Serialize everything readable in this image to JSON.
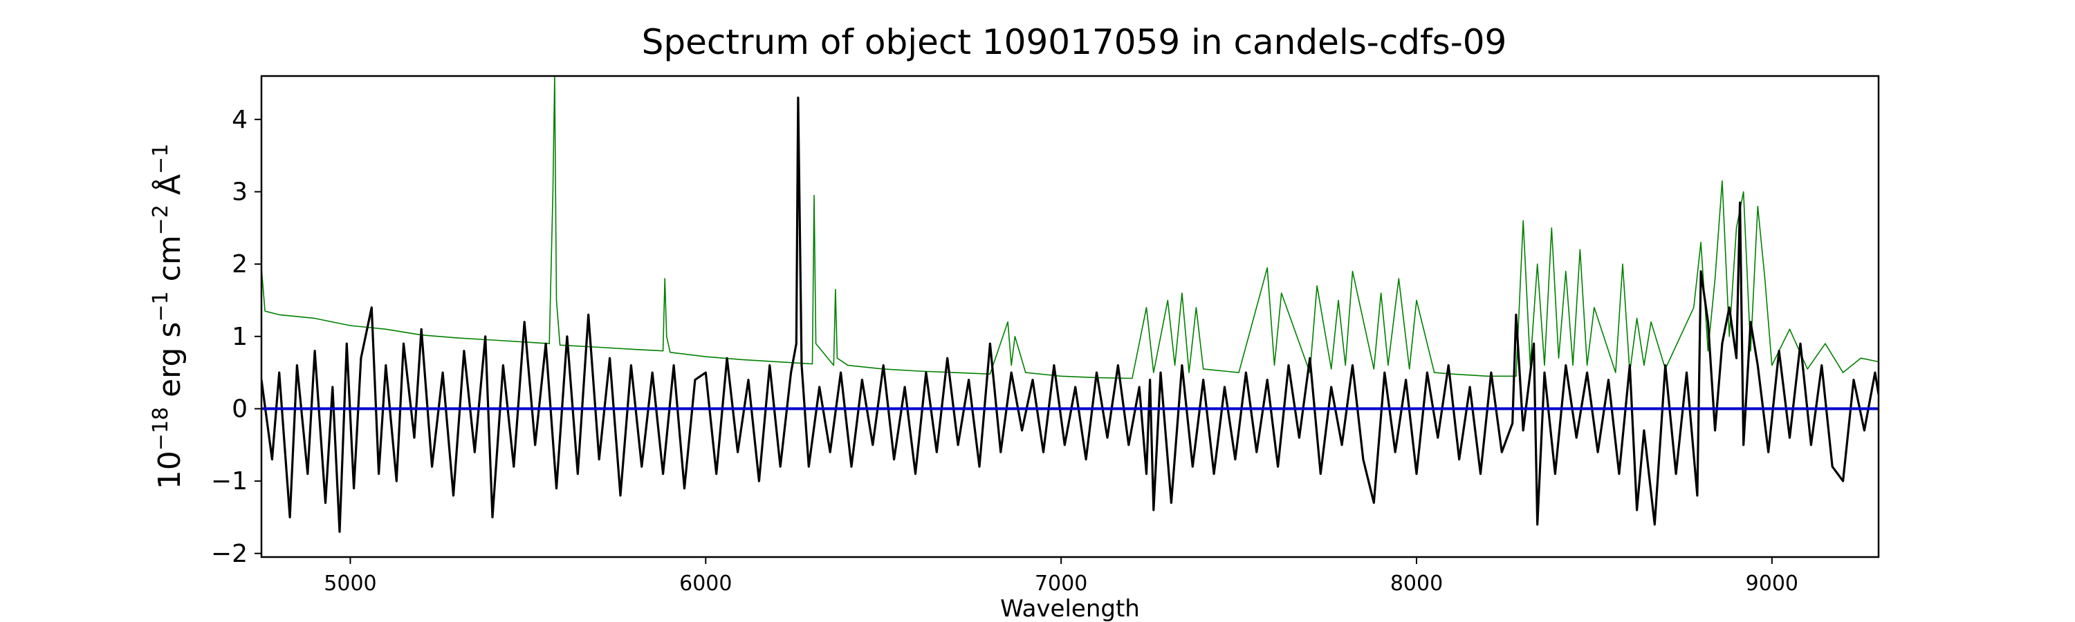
{
  "chart_data": {
    "type": "line",
    "title": "Spectrum of object 109017059 in candels-cdfs-09",
    "xlabel": "Wavelength",
    "ylabel_base": "10",
    "ylabel_exp": "−18",
    "ylabel_rest": " erg s",
    "ylabel_s_exp": "−1",
    "ylabel_cm": " cm",
    "ylabel_cm_exp": "−2",
    "ylabel_angstrom": " Å",
    "ylabel_a_exp": "−1",
    "xlim": [
      4750,
      9300
    ],
    "ylim": [
      -2.05,
      4.6
    ],
    "x_ticks": [
      5000,
      6000,
      7000,
      8000,
      9000
    ],
    "x_tick_labels": [
      "5000",
      "6000",
      "7000",
      "8000",
      "9000"
    ],
    "y_ticks": [
      -2,
      -1,
      0,
      1,
      2,
      3,
      4
    ],
    "y_tick_labels": [
      "−2",
      "−1",
      "0",
      "1",
      "2",
      "3",
      "4"
    ],
    "grid": false,
    "series": [
      {
        "role": "noise",
        "color": "#008000",
        "x": [
          4750,
          4760,
          4800,
          4900,
          5000,
          5100,
          5200,
          5300,
          5400,
          5500,
          5560,
          5570,
          5575,
          5580,
          5590,
          5700,
          5800,
          5880,
          5885,
          5890,
          5900,
          6000,
          6100,
          6200,
          6300,
          6305,
          6310,
          6360,
          6365,
          6370,
          6400,
          6500,
          6600,
          6700,
          6800,
          6850,
          6860,
          6870,
          6900,
          7000,
          7100,
          7200,
          7240,
          7260,
          7300,
          7320,
          7340,
          7360,
          7380,
          7400,
          7500,
          7580,
          7600,
          7620,
          7700,
          7720,
          7760,
          7780,
          7800,
          7820,
          7880,
          7900,
          7920,
          7950,
          7980,
          8000,
          8050,
          8100,
          8200,
          8280,
          8300,
          8320,
          8340,
          8360,
          8380,
          8400,
          8420,
          8440,
          8460,
          8480,
          8500,
          8560,
          8580,
          8600,
          8620,
          8640,
          8660,
          8700,
          8780,
          8800,
          8820,
          8840,
          8860,
          8880,
          8900,
          8920,
          8940,
          8960,
          8980,
          9000,
          9050,
          9100,
          9150,
          9200,
          9250,
          9300
        ],
        "y": [
          1.95,
          1.35,
          1.3,
          1.25,
          1.15,
          1.1,
          1.02,
          0.98,
          0.95,
          0.92,
          0.9,
          3.0,
          4.6,
          1.5,
          0.88,
          0.85,
          0.82,
          0.8,
          1.8,
          1.0,
          0.78,
          0.72,
          0.68,
          0.65,
          0.62,
          2.95,
          0.9,
          0.6,
          1.65,
          0.7,
          0.6,
          0.55,
          0.52,
          0.5,
          0.48,
          1.2,
          0.6,
          1.0,
          0.5,
          0.45,
          0.43,
          0.42,
          1.4,
          0.5,
          1.5,
          0.6,
          1.6,
          0.5,
          1.4,
          0.55,
          0.5,
          1.95,
          0.6,
          1.6,
          0.5,
          1.7,
          0.55,
          1.5,
          0.6,
          1.9,
          0.55,
          1.6,
          0.6,
          1.8,
          0.55,
          1.5,
          0.5,
          0.48,
          0.45,
          0.45,
          2.6,
          0.6,
          2.0,
          0.6,
          2.5,
          0.7,
          1.9,
          0.6,
          2.2,
          0.6,
          1.4,
          0.5,
          2.0,
          0.5,
          1.25,
          0.6,
          1.2,
          0.55,
          1.4,
          2.3,
          0.8,
          1.8,
          3.15,
          1.0,
          2.5,
          3.0,
          0.8,
          2.8,
          1.8,
          0.6,
          1.1,
          0.55,
          0.9,
          0.5,
          0.7,
          0.65
        ]
      },
      {
        "role": "flux",
        "color": "#000000",
        "x": [
          4750,
          4780,
          4800,
          4830,
          4850,
          4880,
          4900,
          4930,
          4950,
          4970,
          4990,
          5010,
          5030,
          5060,
          5080,
          5100,
          5130,
          5150,
          5180,
          5200,
          5230,
          5260,
          5290,
          5320,
          5350,
          5380,
          5400,
          5430,
          5460,
          5490,
          5520,
          5550,
          5580,
          5610,
          5640,
          5670,
          5700,
          5730,
          5760,
          5790,
          5820,
          5850,
          5880,
          5910,
          5940,
          5970,
          6000,
          6030,
          6060,
          6090,
          6120,
          6150,
          6180,
          6210,
          6240,
          6255,
          6260,
          6270,
          6290,
          6320,
          6350,
          6380,
          6410,
          6440,
          6470,
          6500,
          6530,
          6560,
          6590,
          6620,
          6650,
          6680,
          6710,
          6740,
          6770,
          6800,
          6830,
          6860,
          6890,
          6920,
          6950,
          6980,
          7010,
          7040,
          7070,
          7100,
          7130,
          7160,
          7190,
          7220,
          7240,
          7250,
          7260,
          7280,
          7310,
          7340,
          7370,
          7400,
          7430,
          7460,
          7490,
          7520,
          7550,
          7580,
          7610,
          7640,
          7670,
          7700,
          7730,
          7760,
          7790,
          7820,
          7850,
          7880,
          7910,
          7940,
          7970,
          8000,
          8030,
          8060,
          8090,
          8120,
          8150,
          8180,
          8210,
          8240,
          8270,
          8280,
          8300,
          8330,
          8340,
          8360,
          8390,
          8420,
          8450,
          8480,
          8510,
          8540,
          8570,
          8600,
          8620,
          8640,
          8670,
          8700,
          8730,
          8760,
          8790,
          8800,
          8820,
          8840,
          8860,
          8880,
          8900,
          8910,
          8920,
          8940,
          8960,
          8990,
          9020,
          9050,
          9080,
          9110,
          9140,
          9170,
          9200,
          9230,
          9260,
          9290,
          9300
        ],
        "y": [
          0.4,
          -0.7,
          0.5,
          -1.5,
          0.6,
          -0.9,
          0.8,
          -1.3,
          0.3,
          -1.7,
          0.9,
          -1.1,
          0.7,
          1.4,
          -0.9,
          0.6,
          -1.0,
          0.9,
          -0.4,
          1.1,
          -0.8,
          0.5,
          -1.2,
          0.8,
          -0.6,
          1.0,
          -1.5,
          0.6,
          -0.8,
          1.2,
          -0.5,
          0.9,
          -1.1,
          1.0,
          -0.9,
          1.3,
          -0.7,
          0.7,
          -1.2,
          0.6,
          -0.8,
          0.5,
          -0.9,
          0.6,
          -1.1,
          0.4,
          0.5,
          -0.9,
          0.7,
          -0.6,
          0.4,
          -1.0,
          0.6,
          -0.8,
          0.5,
          0.9,
          4.3,
          0.6,
          -0.8,
          0.3,
          -0.6,
          0.5,
          -0.8,
          0.4,
          -0.5,
          0.6,
          -0.7,
          0.3,
          -0.9,
          0.5,
          -0.6,
          0.7,
          -0.5,
          0.4,
          -0.8,
          0.9,
          -0.6,
          0.5,
          -0.3,
          0.4,
          -0.6,
          0.6,
          -0.5,
          0.3,
          -0.7,
          0.5,
          -0.4,
          0.6,
          -0.5,
          0.3,
          -0.9,
          0.4,
          -1.4,
          0.5,
          -1.3,
          0.6,
          -0.8,
          0.4,
          -0.9,
          0.3,
          -0.7,
          0.5,
          -0.6,
          0.4,
          -0.8,
          0.6,
          -0.4,
          0.7,
          -0.9,
          0.3,
          -0.5,
          0.6,
          -0.7,
          -1.3,
          0.5,
          -0.6,
          0.4,
          -0.9,
          0.5,
          -0.4,
          0.6,
          -0.7,
          0.3,
          -0.9,
          0.5,
          -0.6,
          -0.2,
          1.3,
          -0.3,
          0.9,
          -1.6,
          0.5,
          -0.9,
          0.6,
          -0.4,
          0.5,
          -0.6,
          0.4,
          -0.9,
          0.6,
          -1.4,
          -0.3,
          -1.6,
          0.6,
          -0.9,
          0.5,
          -1.2,
          1.9,
          1.2,
          -0.3,
          0.9,
          1.4,
          0.7,
          2.85,
          -0.5,
          1.2,
          0.6,
          -0.6,
          0.8,
          -0.4,
          0.9,
          -0.5,
          0.6,
          -0.8,
          -1.0,
          0.4,
          -0.3,
          0.5,
          0.2
        ]
      },
      {
        "role": "zero",
        "color": "#0000cc",
        "x": [
          4750,
          9300
        ],
        "y": [
          0,
          0
        ]
      }
    ]
  }
}
